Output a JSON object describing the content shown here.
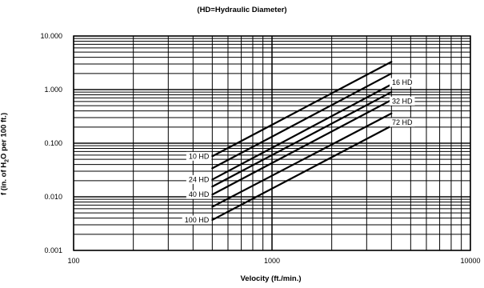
{
  "chart_data": {
    "type": "line",
    "title": "(HD=Hydraulic Diameter)",
    "xlabel": "Velocity (ft./min.)",
    "ylabel_parts": [
      "f (in. of H",
      "2",
      "O per 100 ft.)"
    ],
    "xscale": "log",
    "yscale": "log",
    "xlim": [
      100,
      10000
    ],
    "ylim": [
      0.001,
      10
    ],
    "grid": true,
    "x_tick_labels": [
      "100",
      "1000",
      "10000"
    ],
    "y_tick_labels": [
      "0.001",
      "0.010",
      "0.100",
      "1.000",
      "10.000"
    ],
    "series": [
      {
        "name": "10 HD",
        "label_side": "left",
        "points": [
          [
            500,
            0.057
          ],
          [
            4000,
            3.3
          ]
        ]
      },
      {
        "name": "16 HD",
        "label_side": "right",
        "points": [
          [
            500,
            0.034
          ],
          [
            4000,
            2.0
          ]
        ]
      },
      {
        "name": "24 HD",
        "label_side": "left",
        "points": [
          [
            500,
            0.021
          ],
          [
            4000,
            1.25
          ]
        ]
      },
      {
        "name": "32 HD",
        "label_side": "right",
        "points": [
          [
            500,
            0.0155
          ],
          [
            4000,
            0.9
          ]
        ]
      },
      {
        "name": "40 HD",
        "label_side": "left",
        "points": [
          [
            500,
            0.011
          ],
          [
            4000,
            0.64
          ]
        ]
      },
      {
        "name": "72 HD",
        "label_side": "right",
        "points": [
          [
            500,
            0.0065
          ],
          [
            4000,
            0.36
          ]
        ]
      },
      {
        "name": "100 HD",
        "label_side": "left",
        "points": [
          [
            500,
            0.0037
          ],
          [
            4000,
            0.21
          ]
        ]
      }
    ]
  }
}
